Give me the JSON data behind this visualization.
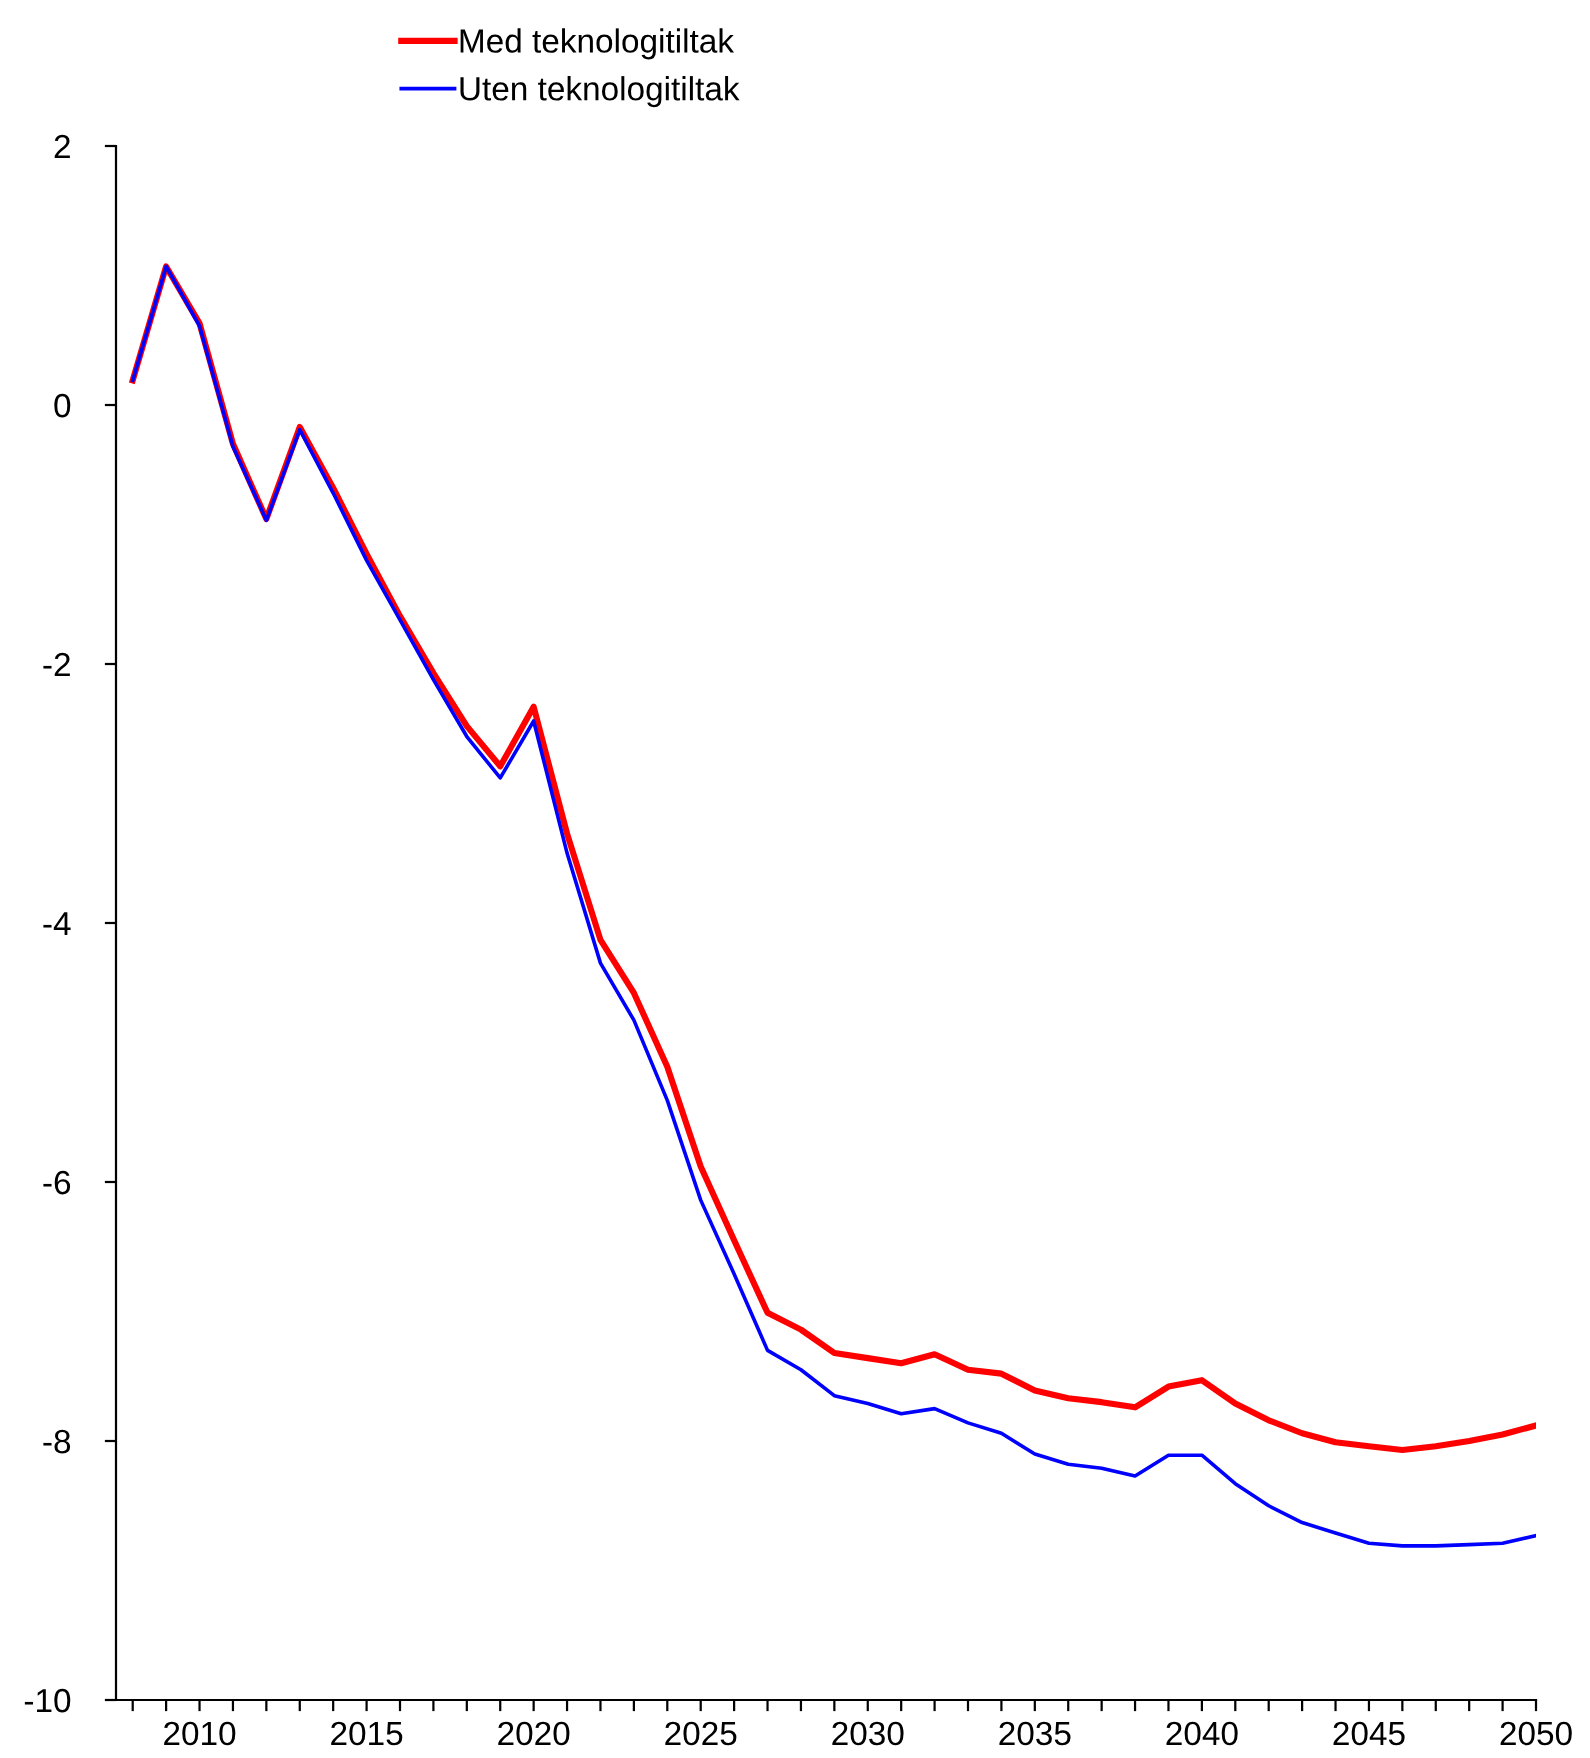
{
  "chart_data": {
    "type": "line",
    "x": [
      2008,
      2009,
      2010,
      2011,
      2012,
      2013,
      2014,
      2015,
      2016,
      2017,
      2018,
      2019,
      2020,
      2021,
      2022,
      2023,
      2024,
      2025,
      2026,
      2027,
      2028,
      2029,
      2030,
      2031,
      2032,
      2033,
      2034,
      2035,
      2036,
      2037,
      2038,
      2039,
      2040,
      2041,
      2042,
      2043,
      2044,
      2045,
      2046,
      2047,
      2048,
      2049,
      2050
    ],
    "series": [
      {
        "name": "Med teknologitiltak",
        "color": "#ff0000",
        "values": [
          0.19,
          1.07,
          0.63,
          -0.3,
          -0.88,
          -0.17,
          -0.64,
          -1.15,
          -1.63,
          -2.07,
          -2.48,
          -2.79,
          -2.33,
          -3.31,
          -4.13,
          -4.54,
          -5.11,
          -5.88,
          -6.45,
          -7.01,
          -7.14,
          -7.32,
          -7.36,
          -7.4,
          -7.33,
          -7.45,
          -7.48,
          -7.61,
          -7.67,
          -7.7,
          -7.74,
          -7.58,
          -7.53,
          -7.71,
          -7.84,
          -7.94,
          -8.01,
          -8.04,
          -8.07,
          -8.04,
          -8.0,
          -7.95,
          -7.88
        ]
      },
      {
        "name": "Uten teknologitiltak",
        "color": "#0000ff",
        "values": [
          0.19,
          1.07,
          0.61,
          -0.32,
          -0.89,
          -0.19,
          -0.68,
          -1.2,
          -1.66,
          -2.12,
          -2.56,
          -2.88,
          -2.44,
          -3.46,
          -4.31,
          -4.75,
          -5.37,
          -6.14,
          -6.71,
          -7.3,
          -7.45,
          -7.65,
          -7.71,
          -7.79,
          -7.75,
          -7.86,
          -7.94,
          -8.1,
          -8.18,
          -8.21,
          -8.27,
          -8.11,
          -8.11,
          -8.33,
          -8.5,
          -8.63,
          -8.71,
          -8.79,
          -8.81,
          -8.81,
          -8.8,
          -8.79,
          -8.73
        ]
      }
    ],
    "xlim": [
      2007.5,
      2050
    ],
    "xticks": [
      {
        "value": 2008,
        "label": null
      },
      {
        "value": 2009,
        "label": null
      },
      2010,
      {
        "value": 2011,
        "label": null
      },
      {
        "value": 2012,
        "label": null
      },
      {
        "value": 2013,
        "label": null
      },
      {
        "value": 2014,
        "label": null
      },
      2015,
      {
        "value": 2016,
        "label": null
      },
      {
        "value": 2017,
        "label": null
      },
      {
        "value": 2018,
        "label": null
      },
      {
        "value": 2019,
        "label": null
      },
      2020,
      {
        "value": 2021,
        "label": null
      },
      {
        "value": 2022,
        "label": null
      },
      {
        "value": 2023,
        "label": null
      },
      {
        "value": 2024,
        "label": null
      },
      2025,
      {
        "value": 2026,
        "label": null
      },
      {
        "value": 2027,
        "label": null
      },
      {
        "value": 2028,
        "label": null
      },
      {
        "value": 2029,
        "label": null
      },
      2030,
      {
        "value": 2031,
        "label": null
      },
      {
        "value": 2032,
        "label": null
      },
      {
        "value": 2033,
        "label": null
      },
      {
        "value": 2034,
        "label": null
      },
      2035,
      {
        "value": 2036,
        "label": null
      },
      {
        "value": 2037,
        "label": null
      },
      {
        "value": 2038,
        "label": null
      },
      {
        "value": 2039,
        "label": null
      },
      2040,
      {
        "value": 2041,
        "label": null
      },
      {
        "value": 2042,
        "label": null
      },
      {
        "value": 2043,
        "label": null
      },
      {
        "value": 2044,
        "label": null
      },
      2045,
      {
        "value": 2046,
        "label": null
      },
      {
        "value": 2047,
        "label": null
      },
      {
        "value": 2048,
        "label": null
      },
      {
        "value": 2049,
        "label": null
      },
      2050
    ],
    "ylim": [
      -10,
      2
    ],
    "yticks": [
      -10,
      -8,
      -6,
      -4,
      -2,
      0,
      2
    ],
    "grid": false,
    "legend": "top",
    "marker": "none",
    "line_style": "solid"
  }
}
